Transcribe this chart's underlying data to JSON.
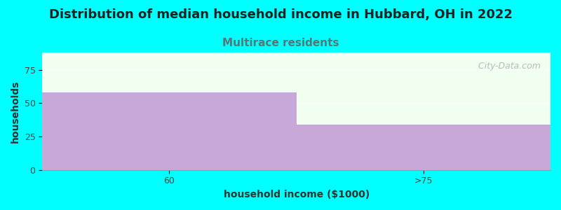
{
  "title": "Distribution of median household income in Hubbard, OH in 2022",
  "subtitle": "Multirace residents",
  "categories": [
    "60",
    ">75"
  ],
  "values": [
    58,
    34
  ],
  "bar_color": "#C8A8D8",
  "background_color": "#00FFFF",
  "plot_bg_color": "#F0FFF0",
  "xlabel": "household income ($1000)",
  "ylabel": "households",
  "ylim": [
    0,
    88
  ],
  "yticks": [
    0,
    25,
    50,
    75
  ],
  "title_fontsize": 13,
  "title_color": "#222222",
  "subtitle_fontsize": 11,
  "subtitle_color": "#557777",
  "axis_label_fontsize": 10,
  "tick_fontsize": 9,
  "watermark": "  City-Data.com"
}
